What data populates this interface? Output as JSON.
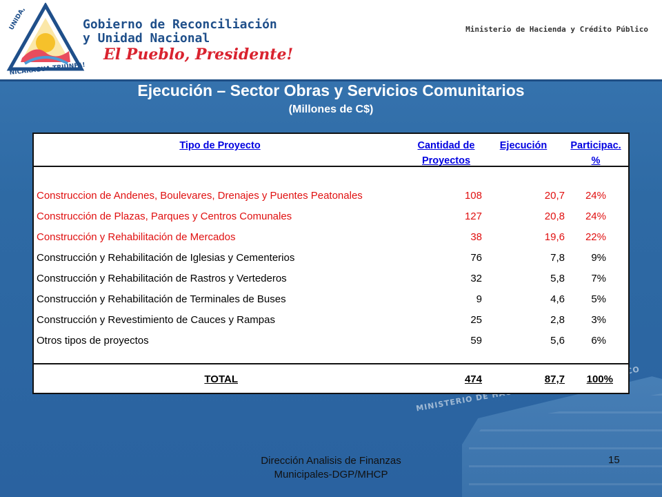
{
  "header": {
    "gov_title_line1": "Gobierno de Reconciliación",
    "gov_title_line2": "y Unidad Nacional",
    "slogan": "El Pueblo, Presidente!",
    "ministry": "Ministerio de Hacienda y Crédito Público",
    "logo_text_top": "UNIDA,",
    "logo_text_bottom": "NICARAGUA TRIUNFA!"
  },
  "slide": {
    "title": "Ejecución – Sector Obras y Servicios Comunitarios",
    "subtitle": "(Millones de C$)"
  },
  "table": {
    "headers": {
      "tipo": "Tipo de Proyecto",
      "cantidad_l1": "Cantidad de",
      "cantidad_l2": "Proyectos",
      "ejecucion": "Ejecución",
      "particip_l1": "Participac.",
      "particip_l2": "%"
    },
    "rows": [
      {
        "name": "Construccion de  Andenes, Boulevares, Drenajes y Puentes Peatonales",
        "qty": "108",
        "exec": "20,7",
        "pct": "24%",
        "color": "#e01010"
      },
      {
        "name": "Construcción de Plazas, Parques y Centros Comunales",
        "qty": "127",
        "exec": "20,8",
        "pct": "24%",
        "color": "#e01010"
      },
      {
        "name": "Construcción y  Rehabilitación de Mercados",
        "qty": "38",
        "exec": "19,6",
        "pct": "22%",
        "color": "#e01010"
      },
      {
        "name": "Construcción y  Rehabilitación de Iglesias y Cementerios",
        "qty": "76",
        "exec": "7,8",
        "pct": "9%",
        "color": "#000000"
      },
      {
        "name": "Construcción y  Rehabilitación de Rastros y Vertederos",
        "qty": "32",
        "exec": "5,8",
        "pct": "7%",
        "color": "#000000"
      },
      {
        "name": "Construcción y  Rehabilitación de Terminales de Buses",
        "qty": "9",
        "exec": "4,6",
        "pct": "5%",
        "color": "#000000"
      },
      {
        "name": "Construcción y Revestimiento de Cauces y Rampas",
        "qty": "25",
        "exec": "2,8",
        "pct": "3%",
        "color": "#000000"
      },
      {
        "name": "Otros tipos de proyectos",
        "qty": "59",
        "exec": "5,6",
        "pct": "6%",
        "color": "#000000"
      }
    ],
    "total": {
      "name": "TOTAL",
      "qty": "474",
      "exec": "87,7",
      "pct": "100%"
    }
  },
  "footer": {
    "line1": "Dirección Analisis de Finanzas",
    "line2": "Municipales-DGP/MHCP",
    "page": "15"
  },
  "building_sign": "MINISTERIO DE HACIENDA Y CRÉDITO PÚBLICO",
  "colors": {
    "red_rows": "#e01010",
    "header_blue": "#0000e0",
    "background": "#2f6aa3"
  }
}
